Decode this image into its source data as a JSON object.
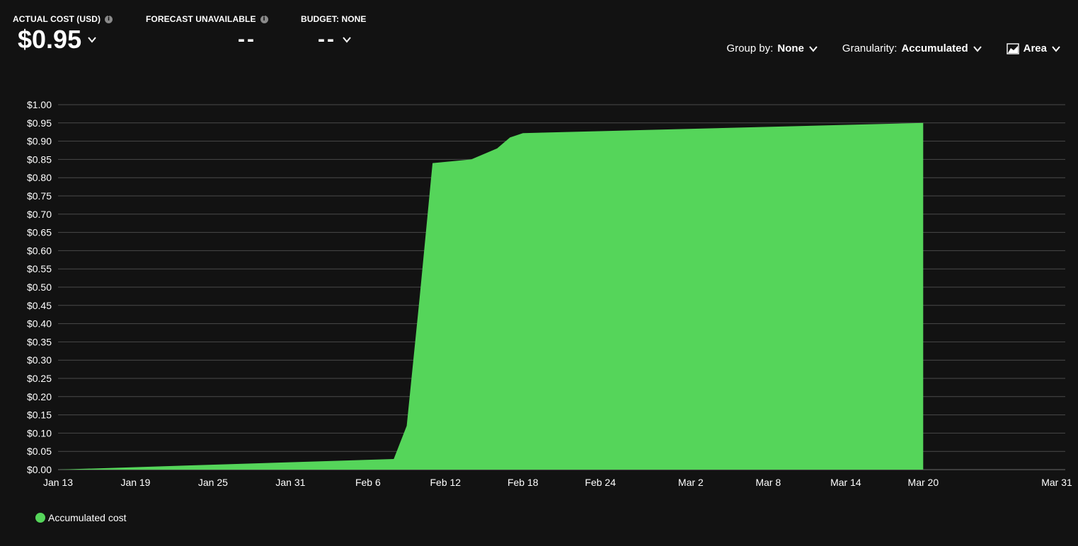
{
  "kpis": {
    "actual": {
      "label": "ACTUAL COST (USD)",
      "value": "$0.95"
    },
    "forecast": {
      "label": "FORECAST UNAVAILABLE",
      "value": "--"
    },
    "budget": {
      "label": "BUDGET: NONE",
      "value": "--"
    }
  },
  "controls": {
    "group_by": {
      "label": "Group by:",
      "value": "None"
    },
    "granularity": {
      "label": "Granularity:",
      "value": "Accumulated"
    },
    "chart_type": {
      "value": "Area",
      "icon": "area-chart-icon"
    }
  },
  "colors": {
    "series": "#55d55a",
    "background": "#121212",
    "grid": "#4a4a4a"
  },
  "chart_data": {
    "type": "area",
    "title": "",
    "xlabel": "",
    "ylabel": "",
    "x_domain": [
      "2024-01-13",
      "2024-03-31"
    ],
    "x_ticks": [
      {
        "date": "2024-01-13",
        "label": "Jan 13"
      },
      {
        "date": "2024-01-19",
        "label": "Jan 19"
      },
      {
        "date": "2024-01-25",
        "label": "Jan 25"
      },
      {
        "date": "2024-01-31",
        "label": "Jan 31"
      },
      {
        "date": "2024-02-06",
        "label": "Feb 6"
      },
      {
        "date": "2024-02-12",
        "label": "Feb 12"
      },
      {
        "date": "2024-02-18",
        "label": "Feb 18"
      },
      {
        "date": "2024-02-24",
        "label": "Feb 24"
      },
      {
        "date": "2024-03-02",
        "label": "Mar 2"
      },
      {
        "date": "2024-03-08",
        "label": "Mar 8"
      },
      {
        "date": "2024-03-14",
        "label": "Mar 14"
      },
      {
        "date": "2024-03-20",
        "label": "Mar 20"
      },
      {
        "date": "2024-03-31",
        "label": "Mar 31"
      }
    ],
    "ylim": [
      0,
      1.0
    ],
    "y_ticks": [
      "$0.00",
      "$0.05",
      "$0.10",
      "$0.15",
      "$0.20",
      "$0.25",
      "$0.30",
      "$0.35",
      "$0.40",
      "$0.45",
      "$0.50",
      "$0.55",
      "$0.60",
      "$0.65",
      "$0.70",
      "$0.75",
      "$0.80",
      "$0.85",
      "$0.90",
      "$0.95",
      "$1.00"
    ],
    "y_tick_values": [
      0,
      0.05,
      0.1,
      0.15,
      0.2,
      0.25,
      0.3,
      0.35,
      0.4,
      0.45,
      0.5,
      0.55,
      0.6,
      0.65,
      0.7,
      0.75,
      0.8,
      0.85,
      0.9,
      0.95,
      1.0
    ],
    "grid": true,
    "legend_position": "bottom-left",
    "series": [
      {
        "name": "Accumulated cost",
        "points": [
          {
            "x": "2024-01-13",
            "y": 0.0
          },
          {
            "x": "2024-02-08",
            "y": 0.029
          },
          {
            "x": "2024-02-09",
            "y": 0.12
          },
          {
            "x": "2024-02-10",
            "y": 0.47
          },
          {
            "x": "2024-02-11",
            "y": 0.84
          },
          {
            "x": "2024-02-14",
            "y": 0.85
          },
          {
            "x": "2024-02-16",
            "y": 0.88
          },
          {
            "x": "2024-02-17",
            "y": 0.91
          },
          {
            "x": "2024-02-18",
            "y": 0.922
          },
          {
            "x": "2024-03-20",
            "y": 0.95
          }
        ]
      }
    ]
  }
}
